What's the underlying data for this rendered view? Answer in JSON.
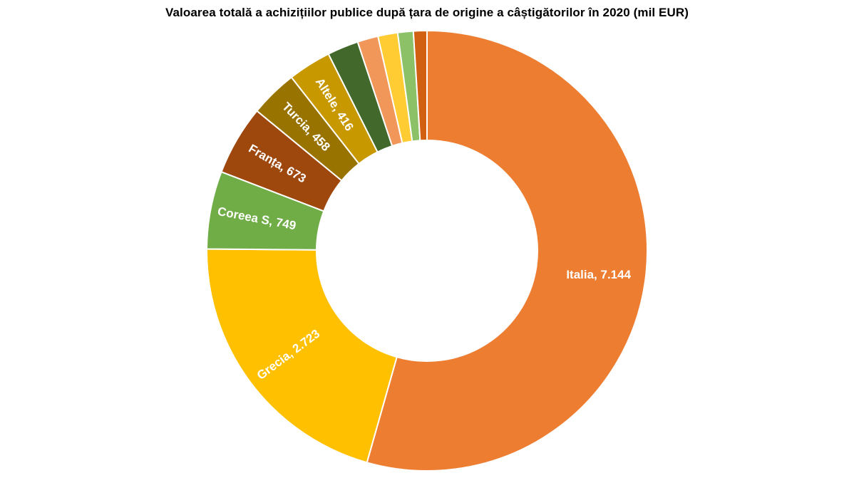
{
  "chart_data": {
    "type": "pie",
    "variant": "donut",
    "title": "Valoarea totală a achizițiilor publice după țara de origine a câștigătorilor în 2020 (mil EUR)",
    "slices": [
      {
        "name": "Italia",
        "value": 7144,
        "label": "Italia,  7.144",
        "color": "#ED7D31"
      },
      {
        "name": "Grecia",
        "value": 2723,
        "label": "Grecia,  2.723",
        "color": "#FFC000"
      },
      {
        "name": "Coreea S",
        "value": 749,
        "label": "Coreea S,  749",
        "color": "#70AD47"
      },
      {
        "name": "Franța",
        "value": 673,
        "label": "Franța,  673",
        "color": "#9E480E"
      },
      {
        "name": "Turcia",
        "value": 458,
        "label": "Turcia,  458",
        "color": "#997300"
      },
      {
        "name": "Altele",
        "value": 416,
        "label": "Altele,  416",
        "color": "#C89800"
      },
      {
        "name": "",
        "value": 300,
        "label": "",
        "color": "#43682B"
      },
      {
        "name": "",
        "value": 200,
        "label": "",
        "color": "#F1975A"
      },
      {
        "name": "",
        "value": 190,
        "label": "",
        "color": "#FFCD33"
      },
      {
        "name": "",
        "value": 150,
        "label": "",
        "color": "#8CC168"
      },
      {
        "name": "",
        "value": 130,
        "label": "",
        "color": "#D26012"
      }
    ],
    "number_format": "thousands separator '.'",
    "legend": "none",
    "start": "top, clockwise"
  }
}
